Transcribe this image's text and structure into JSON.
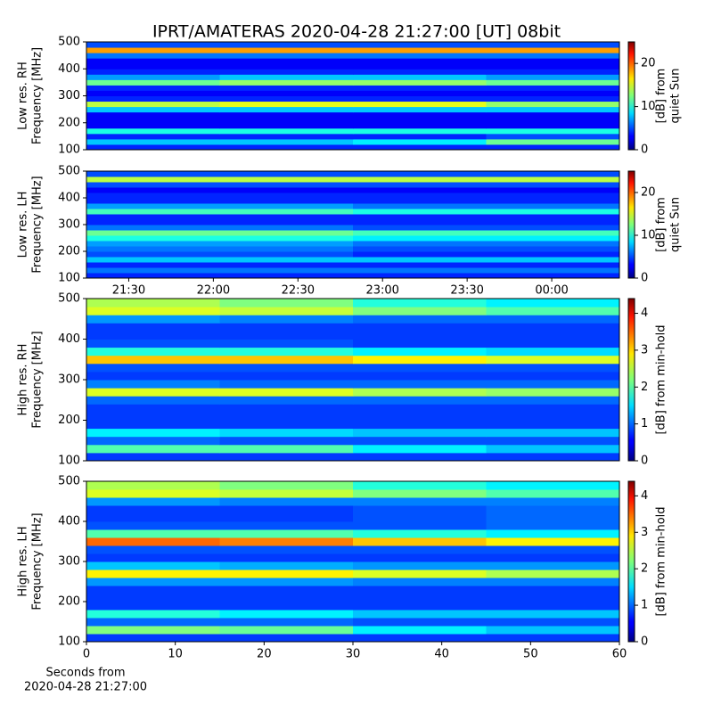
{
  "chart_data": [
    {
      "type": "heatmap",
      "title": "IPRT/AMATERAS 2020-04-28 21:27:00 [UT]   08bit",
      "ylabel": [
        "Low res. RH",
        "Frequency [MHz]"
      ],
      "ylim": [
        100,
        500
      ],
      "yticks": [
        100,
        200,
        300,
        400,
        500
      ],
      "xlim": [
        "21:15",
        "00:24"
      ],
      "xticks": [],
      "cmap": "jet",
      "ybins": [
        100,
        120,
        140,
        160,
        180,
        200,
        220,
        240,
        260,
        280,
        300,
        320,
        340,
        360,
        380,
        400,
        420,
        440,
        460,
        480,
        500
      ],
      "values": [
        [
          4,
          4,
          4,
          4
        ],
        [
          8,
          8,
          9,
          12
        ],
        [
          4,
          4,
          4,
          5
        ],
        [
          10,
          10,
          10,
          10
        ],
        [
          3,
          3,
          3,
          3
        ],
        [
          3,
          3,
          3,
          3
        ],
        [
          3,
          3,
          3,
          3
        ],
        [
          8,
          8,
          8,
          8
        ],
        [
          14,
          15,
          15,
          13
        ],
        [
          4,
          4,
          4,
          4
        ],
        [
          3,
          3,
          3,
          3
        ],
        [
          4,
          4,
          4,
          4
        ],
        [
          12,
          13,
          13,
          12
        ],
        [
          7,
          8,
          8,
          7
        ],
        [
          4,
          4,
          4,
          4
        ],
        [
          3,
          3,
          3,
          3
        ],
        [
          3,
          3,
          3,
          3
        ],
        [
          6,
          6,
          6,
          6
        ],
        [
          18,
          18,
          18,
          18
        ],
        [
          5,
          5,
          5,
          5
        ]
      ],
      "colorbar": {
        "lim": [
          0,
          25
        ],
        "ticks": [
          0,
          10,
          20
        ],
        "label": [
          "[dB] from",
          "quiet Sun"
        ]
      }
    },
    {
      "type": "heatmap",
      "ylabel": [
        "Low res. LH",
        "Frequency [MHz]"
      ],
      "ylim": [
        100,
        500
      ],
      "yticks": [
        100,
        200,
        300,
        400,
        500
      ],
      "xlim": [
        "21:15",
        "00:24"
      ],
      "xticks": [
        "21:30",
        "22:00",
        "22:30",
        "23:00",
        "23:30",
        "00:00"
      ],
      "cmap": "jet",
      "ybins": [
        100,
        120,
        140,
        160,
        180,
        200,
        220,
        240,
        260,
        280,
        300,
        320,
        340,
        360,
        380,
        400,
        420,
        440,
        460,
        480,
        500
      ],
      "values": [
        [
          4,
          4,
          4,
          4
        ],
        [
          6,
          6,
          6,
          6
        ],
        [
          4,
          4,
          4,
          4
        ],
        [
          8,
          8,
          8,
          8
        ],
        [
          5,
          5,
          4,
          4
        ],
        [
          6,
          6,
          5,
          5
        ],
        [
          7,
          7,
          6,
          6
        ],
        [
          10,
          10,
          9,
          9
        ],
        [
          12,
          12,
          11,
          11
        ],
        [
          6,
          6,
          5,
          5
        ],
        [
          4,
          4,
          4,
          4
        ],
        [
          4,
          4,
          4,
          4
        ],
        [
          11,
          11,
          10,
          10
        ],
        [
          7,
          7,
          6,
          6
        ],
        [
          4,
          4,
          4,
          4
        ],
        [
          4,
          4,
          4,
          4
        ],
        [
          3,
          3,
          3,
          3
        ],
        [
          5,
          5,
          5,
          5
        ],
        [
          14,
          14,
          14,
          14
        ],
        [
          5,
          5,
          5,
          5
        ]
      ],
      "colorbar": {
        "lim": [
          0,
          25
        ],
        "ticks": [
          0,
          10,
          20
        ],
        "label": [
          "[dB] from",
          "quiet Sun"
        ]
      }
    },
    {
      "type": "heatmap",
      "ylabel": [
        "High res. RH",
        "Frequency [MHz]"
      ],
      "ylim": [
        100,
        500
      ],
      "yticks": [
        100,
        200,
        300,
        400,
        500
      ],
      "xlim": [
        0,
        60
      ],
      "xticks": [],
      "cmap": "jet",
      "ybins": [
        100,
        120,
        140,
        160,
        180,
        200,
        220,
        240,
        260,
        280,
        300,
        320,
        340,
        360,
        380,
        400,
        420,
        440,
        460,
        480,
        500
      ],
      "values": [
        [
          0.8,
          0.8,
          0.8,
          0.8
        ],
        [
          2.0,
          2.0,
          1.6,
          1.4
        ],
        [
          1.0,
          0.9,
          0.9,
          0.9
        ],
        [
          1.6,
          1.5,
          1.4,
          1.4
        ],
        [
          0.8,
          0.8,
          0.8,
          0.8
        ],
        [
          0.8,
          0.8,
          0.8,
          0.8
        ],
        [
          0.8,
          0.8,
          0.8,
          0.8
        ],
        [
          1.0,
          1.0,
          1.0,
          1.0
        ],
        [
          2.6,
          2.6,
          2.4,
          2.3
        ],
        [
          1.1,
          1.0,
          1.0,
          1.0
        ],
        [
          0.8,
          0.8,
          0.8,
          0.8
        ],
        [
          0.9,
          0.9,
          0.9,
          0.9
        ],
        [
          3.0,
          3.0,
          2.8,
          2.6
        ],
        [
          1.8,
          1.8,
          1.6,
          1.5
        ],
        [
          0.9,
          0.9,
          0.8,
          0.8
        ],
        [
          0.8,
          0.8,
          0.8,
          0.8
        ],
        [
          0.8,
          0.8,
          0.8,
          0.8
        ],
        [
          1.2,
          1.1,
          1.0,
          1.0
        ],
        [
          2.6,
          2.5,
          2.2,
          2.0
        ],
        [
          2.4,
          2.2,
          1.8,
          1.6
        ]
      ],
      "colorbar": {
        "lim": [
          0,
          4.4
        ],
        "ticks": [
          0,
          1,
          2,
          3,
          4
        ],
        "label": [
          "[dB] from min-hold"
        ]
      }
    },
    {
      "type": "heatmap",
      "ylabel": [
        "High res. LH",
        "Frequency [MHz]"
      ],
      "ylim": [
        100,
        500
      ],
      "yticks": [
        100,
        200,
        300,
        400,
        500
      ],
      "xlim": [
        0,
        60
      ],
      "xticks": [
        0,
        10,
        20,
        30,
        40,
        50,
        60
      ],
      "cmap": "jet",
      "xlabel": [
        "Seconds from",
        "2020-04-28 21:27:00"
      ],
      "ybins": [
        100,
        120,
        140,
        160,
        180,
        200,
        220,
        240,
        260,
        280,
        300,
        320,
        340,
        360,
        380,
        400,
        420,
        440,
        460,
        480,
        500
      ],
      "values": [
        [
          0.8,
          0.8,
          0.8,
          0.8
        ],
        [
          2.2,
          2.1,
          1.6,
          1.4
        ],
        [
          1.0,
          1.0,
          0.9,
          0.9
        ],
        [
          1.8,
          1.6,
          1.4,
          1.4
        ],
        [
          0.8,
          0.8,
          0.8,
          0.8
        ],
        [
          0.8,
          0.8,
          0.8,
          0.8
        ],
        [
          0.8,
          0.8,
          0.8,
          0.8
        ],
        [
          1.2,
          1.2,
          1.1,
          1.1
        ],
        [
          2.8,
          2.8,
          2.6,
          2.4
        ],
        [
          1.4,
          1.3,
          1.2,
          1.2
        ],
        [
          0.8,
          0.8,
          0.8,
          0.8
        ],
        [
          0.9,
          0.9,
          0.9,
          0.9
        ],
        [
          3.4,
          3.3,
          3.0,
          2.8
        ],
        [
          2.0,
          2.0,
          1.8,
          1.6
        ],
        [
          0.9,
          0.9,
          0.9,
          1.0
        ],
        [
          0.8,
          0.8,
          0.9,
          1.0
        ],
        [
          0.8,
          0.8,
          0.9,
          1.0
        ],
        [
          1.2,
          1.1,
          1.1,
          1.1
        ],
        [
          2.6,
          2.5,
          2.2,
          2.0
        ],
        [
          2.4,
          2.2,
          1.8,
          1.6
        ]
      ],
      "colorbar": {
        "lim": [
          0,
          4.4
        ],
        "ticks": [
          0,
          1,
          2,
          3,
          4
        ],
        "label": [
          "[dB] from min-hold"
        ]
      }
    }
  ]
}
